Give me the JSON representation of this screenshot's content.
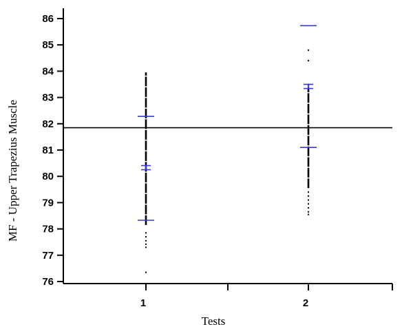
{
  "chart_data": {
    "type": "scatter",
    "xlabel": "Tests",
    "ylabel": "MF - Upper Trapezius Muscle",
    "ylim": [
      76,
      86.5
    ],
    "yticks": [
      76,
      77,
      78,
      79,
      80,
      81,
      82,
      83,
      84,
      85,
      86
    ],
    "xticks": [
      1,
      2
    ],
    "reference_line": 81.85,
    "grid": false,
    "colors": {
      "marker": "#3a3ad6",
      "data": "#000000",
      "axis": "#000000"
    },
    "groups": [
      {
        "label": "1",
        "mean": 80.33,
        "upper_limit": 82.28,
        "lower_limit": 78.33,
        "solid_range": [
          78.15,
          83.95
        ],
        "points": [
          77.85,
          77.7,
          77.55,
          77.42,
          77.3,
          76.35
        ]
      },
      {
        "label": "2",
        "mean": 83.42,
        "upper_limit": 85.73,
        "lower_limit": 81.1,
        "solid_range": [
          79.55,
          83.35
        ],
        "points": [
          84.8,
          84.4,
          79.4,
          79.25,
          79.1,
          78.95,
          78.8,
          78.65,
          78.55
        ]
      }
    ]
  }
}
